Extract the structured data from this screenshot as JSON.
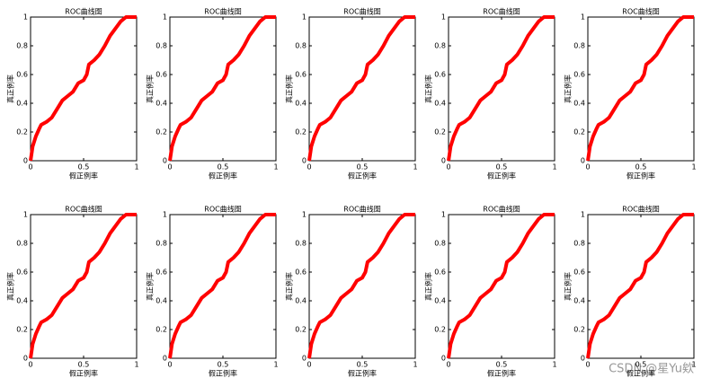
{
  "chart_data": [
    {
      "type": "line",
      "title": "ROC曲线图",
      "xlabel": "假正例率",
      "ylabel": "真正例率",
      "color": "#ff0000",
      "x": [
        0,
        0.02,
        0.05,
        0.08,
        0.1,
        0.15,
        0.2,
        0.25,
        0.3,
        0.35,
        0.4,
        0.45,
        0.5,
        0.53,
        0.55,
        0.6,
        0.65,
        0.7,
        0.75,
        0.8,
        0.85,
        0.9,
        1
      ],
      "values": [
        0,
        0.1,
        0.17,
        0.22,
        0.25,
        0.27,
        0.3,
        0.36,
        0.42,
        0.45,
        0.48,
        0.54,
        0.56,
        0.6,
        0.67,
        0.7,
        0.74,
        0.8,
        0.87,
        0.92,
        0.97,
        1,
        1
      ],
      "xlim": [
        0,
        1
      ],
      "ylim": [
        0,
        1
      ],
      "xticks": [
        0,
        0.5,
        1
      ],
      "yticks": [
        0,
        0.2,
        0.4,
        0.6,
        0.8,
        1
      ]
    },
    {
      "type": "line",
      "title": "ROC曲线图",
      "xlabel": "假正例率",
      "ylabel": "真正例率",
      "color": "#ff0000",
      "x": [
        0,
        0.02,
        0.05,
        0.08,
        0.1,
        0.15,
        0.2,
        0.25,
        0.3,
        0.35,
        0.4,
        0.45,
        0.5,
        0.53,
        0.55,
        0.6,
        0.65,
        0.7,
        0.75,
        0.8,
        0.85,
        0.9,
        1
      ],
      "values": [
        0,
        0.1,
        0.17,
        0.22,
        0.25,
        0.27,
        0.3,
        0.36,
        0.42,
        0.45,
        0.48,
        0.54,
        0.56,
        0.6,
        0.67,
        0.7,
        0.74,
        0.8,
        0.87,
        0.92,
        0.97,
        1,
        1
      ],
      "xlim": [
        0,
        1
      ],
      "ylim": [
        0,
        1
      ],
      "xticks": [
        0,
        0.5,
        1
      ],
      "yticks": [
        0,
        0.2,
        0.4,
        0.6,
        0.8,
        1
      ]
    },
    {
      "type": "line",
      "title": "ROC曲线图",
      "xlabel": "假正例率",
      "ylabel": "真正例率",
      "color": "#ff0000",
      "x": [
        0,
        0.02,
        0.05,
        0.08,
        0.1,
        0.15,
        0.2,
        0.25,
        0.3,
        0.35,
        0.4,
        0.45,
        0.5,
        0.53,
        0.55,
        0.6,
        0.65,
        0.7,
        0.75,
        0.8,
        0.85,
        0.9,
        1
      ],
      "values": [
        0,
        0.1,
        0.17,
        0.22,
        0.25,
        0.27,
        0.3,
        0.36,
        0.42,
        0.45,
        0.48,
        0.54,
        0.56,
        0.6,
        0.67,
        0.7,
        0.74,
        0.8,
        0.87,
        0.92,
        0.97,
        1,
        1
      ],
      "xlim": [
        0,
        1
      ],
      "ylim": [
        0,
        1
      ],
      "xticks": [
        0,
        0.5,
        1
      ],
      "yticks": [
        0,
        0.2,
        0.4,
        0.6,
        0.8,
        1
      ]
    },
    {
      "type": "line",
      "title": "ROC曲线图",
      "xlabel": "假正例率",
      "ylabel": "真正例率",
      "color": "#ff0000",
      "x": [
        0,
        0.02,
        0.05,
        0.08,
        0.1,
        0.15,
        0.2,
        0.25,
        0.3,
        0.35,
        0.4,
        0.45,
        0.5,
        0.53,
        0.55,
        0.6,
        0.65,
        0.7,
        0.75,
        0.8,
        0.85,
        0.9,
        1
      ],
      "values": [
        0,
        0.1,
        0.17,
        0.22,
        0.25,
        0.27,
        0.3,
        0.36,
        0.42,
        0.45,
        0.48,
        0.54,
        0.56,
        0.6,
        0.67,
        0.7,
        0.74,
        0.8,
        0.87,
        0.92,
        0.97,
        1,
        1
      ],
      "xlim": [
        0,
        1
      ],
      "ylim": [
        0,
        1
      ],
      "xticks": [
        0,
        0.5,
        1
      ],
      "yticks": [
        0,
        0.2,
        0.4,
        0.6,
        0.8,
        1
      ]
    },
    {
      "type": "line",
      "title": "ROC曲线图",
      "xlabel": "假正例率",
      "ylabel": "真正例率",
      "color": "#ff0000",
      "x": [
        0,
        0.02,
        0.05,
        0.08,
        0.1,
        0.15,
        0.2,
        0.25,
        0.3,
        0.35,
        0.4,
        0.45,
        0.5,
        0.53,
        0.55,
        0.6,
        0.65,
        0.7,
        0.75,
        0.8,
        0.85,
        0.9,
        1
      ],
      "values": [
        0,
        0.1,
        0.17,
        0.22,
        0.25,
        0.27,
        0.3,
        0.36,
        0.42,
        0.45,
        0.48,
        0.54,
        0.56,
        0.6,
        0.67,
        0.7,
        0.74,
        0.8,
        0.87,
        0.92,
        0.97,
        1,
        1
      ],
      "xlim": [
        0,
        1
      ],
      "ylim": [
        0,
        1
      ],
      "xticks": [
        0,
        0.5,
        1
      ],
      "yticks": [
        0,
        0.2,
        0.4,
        0.6,
        0.8,
        1
      ]
    },
    {
      "type": "line",
      "title": "ROC曲线图",
      "xlabel": "假正例率",
      "ylabel": "真正例率",
      "color": "#ff0000",
      "x": [
        0,
        0.02,
        0.05,
        0.08,
        0.1,
        0.15,
        0.2,
        0.25,
        0.3,
        0.35,
        0.4,
        0.45,
        0.5,
        0.53,
        0.55,
        0.6,
        0.65,
        0.7,
        0.75,
        0.8,
        0.85,
        0.9,
        1
      ],
      "values": [
        0,
        0.1,
        0.17,
        0.22,
        0.25,
        0.27,
        0.3,
        0.36,
        0.42,
        0.45,
        0.48,
        0.54,
        0.56,
        0.6,
        0.67,
        0.7,
        0.74,
        0.8,
        0.87,
        0.92,
        0.97,
        1,
        1
      ],
      "xlim": [
        0,
        1
      ],
      "ylim": [
        0,
        1
      ],
      "xticks": [
        0,
        0.5,
        1
      ],
      "yticks": [
        0,
        0.2,
        0.4,
        0.6,
        0.8,
        1
      ]
    },
    {
      "type": "line",
      "title": "ROC曲线图",
      "xlabel": "假正例率",
      "ylabel": "真正例率",
      "color": "#ff0000",
      "x": [
        0,
        0.02,
        0.05,
        0.08,
        0.1,
        0.15,
        0.2,
        0.25,
        0.3,
        0.35,
        0.4,
        0.45,
        0.5,
        0.53,
        0.55,
        0.6,
        0.65,
        0.7,
        0.75,
        0.8,
        0.85,
        0.9,
        1
      ],
      "values": [
        0,
        0.1,
        0.17,
        0.22,
        0.25,
        0.27,
        0.3,
        0.36,
        0.42,
        0.45,
        0.48,
        0.54,
        0.56,
        0.6,
        0.67,
        0.7,
        0.74,
        0.8,
        0.87,
        0.92,
        0.97,
        1,
        1
      ],
      "xlim": [
        0,
        1
      ],
      "ylim": [
        0,
        1
      ],
      "xticks": [
        0,
        0.5,
        1
      ],
      "yticks": [
        0,
        0.2,
        0.4,
        0.6,
        0.8,
        1
      ]
    },
    {
      "type": "line",
      "title": "ROC曲线图",
      "xlabel": "假正例率",
      "ylabel": "真正例率",
      "color": "#ff0000",
      "x": [
        0,
        0.02,
        0.05,
        0.08,
        0.1,
        0.15,
        0.2,
        0.25,
        0.3,
        0.35,
        0.4,
        0.45,
        0.5,
        0.53,
        0.55,
        0.6,
        0.65,
        0.7,
        0.75,
        0.8,
        0.85,
        0.9,
        1
      ],
      "values": [
        0,
        0.1,
        0.17,
        0.22,
        0.25,
        0.27,
        0.3,
        0.36,
        0.42,
        0.45,
        0.48,
        0.54,
        0.56,
        0.6,
        0.67,
        0.7,
        0.74,
        0.8,
        0.87,
        0.92,
        0.97,
        1,
        1
      ],
      "xlim": [
        0,
        1
      ],
      "ylim": [
        0,
        1
      ],
      "xticks": [
        0,
        0.5,
        1
      ],
      "yticks": [
        0,
        0.2,
        0.4,
        0.6,
        0.8,
        1
      ]
    },
    {
      "type": "line",
      "title": "ROC曲线图",
      "xlabel": "假正例率",
      "ylabel": "真正例率",
      "color": "#ff0000",
      "x": [
        0,
        0.02,
        0.05,
        0.08,
        0.1,
        0.15,
        0.2,
        0.25,
        0.3,
        0.35,
        0.4,
        0.45,
        0.5,
        0.53,
        0.55,
        0.6,
        0.65,
        0.7,
        0.75,
        0.8,
        0.85,
        0.9,
        1
      ],
      "values": [
        0,
        0.1,
        0.17,
        0.22,
        0.25,
        0.27,
        0.3,
        0.36,
        0.42,
        0.45,
        0.48,
        0.54,
        0.56,
        0.6,
        0.67,
        0.7,
        0.74,
        0.8,
        0.87,
        0.92,
        0.97,
        1,
        1
      ],
      "xlim": [
        0,
        1
      ],
      "ylim": [
        0,
        1
      ],
      "xticks": [
        0,
        0.5,
        1
      ],
      "yticks": [
        0,
        0.2,
        0.4,
        0.6,
        0.8,
        1
      ]
    },
    {
      "type": "line",
      "title": "ROC曲线图",
      "xlabel": "假正例率",
      "ylabel": "真正例率",
      "color": "#ff0000",
      "x": [
        0,
        0.02,
        0.05,
        0.08,
        0.1,
        0.15,
        0.2,
        0.25,
        0.3,
        0.35,
        0.4,
        0.45,
        0.5,
        0.53,
        0.55,
        0.6,
        0.65,
        0.7,
        0.75,
        0.8,
        0.85,
        0.9,
        1
      ],
      "values": [
        0,
        0.1,
        0.17,
        0.22,
        0.25,
        0.27,
        0.3,
        0.36,
        0.42,
        0.45,
        0.48,
        0.54,
        0.56,
        0.6,
        0.67,
        0.7,
        0.74,
        0.8,
        0.87,
        0.92,
        0.97,
        1,
        1
      ],
      "xlim": [
        0,
        1
      ],
      "ylim": [
        0,
        1
      ],
      "xticks": [
        0,
        0.5,
        1
      ],
      "yticks": [
        0,
        0.2,
        0.4,
        0.6,
        0.8,
        1
      ]
    }
  ],
  "watermark": "CSDN @星Yu欸"
}
